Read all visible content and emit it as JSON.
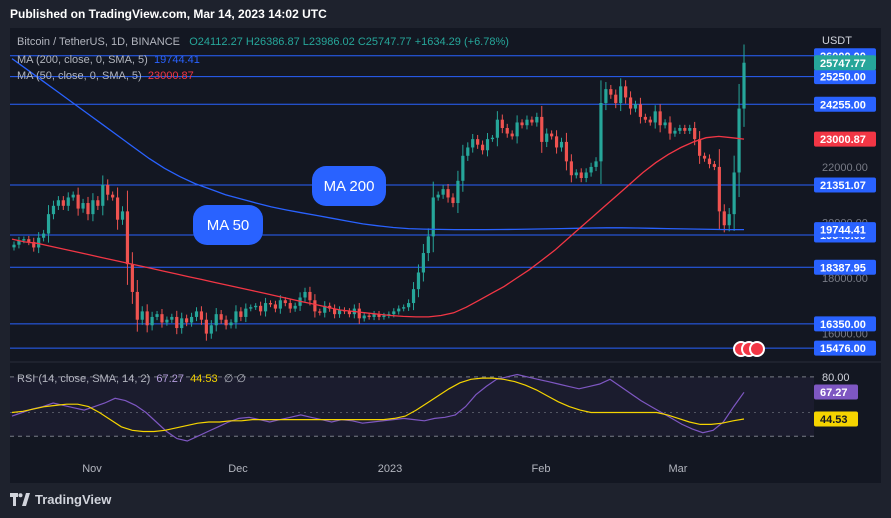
{
  "published": "Published on TradingView.com, Mar 14, 2023 14:02 UTC",
  "brand": "TradingView",
  "legend": {
    "symbol": "Bitcoin / TetherUS, 1D, BINANCE",
    "open": "O24112.27",
    "high": "H26386.87",
    "low": "L23986.02",
    "close": "C25747.77",
    "change": "+1634.29 (+6.78%)",
    "ma200_label": "MA (200, close, 0, SMA, 5)",
    "ma200_value": "19744.41",
    "ma50_label": "MA (50, close, 0, SMA, 5)",
    "ma50_value": "23000.87",
    "rsi_label": "RSI (14, close, SMA, 14, 2)",
    "rsi_value": "67.27",
    "rsi_ma_value": "44.53",
    "rsi_extra": "∅ ∅"
  },
  "currency": "USDT",
  "annotations": {
    "ma200": "MA 200",
    "ma50": "MA 50"
  },
  "colors": {
    "up": "#26a69a",
    "down": "#ef5350",
    "ma200": "#2962ff",
    "ma50": "#f23645",
    "rsi": "#7e57c2",
    "rsi_ma": "#f5d400",
    "level": "#2962ff"
  },
  "chart_data": {
    "type": "candlestick",
    "x_labels": [
      "Nov",
      "Dec",
      "2023",
      "Feb",
      "Mar"
    ],
    "y_ticks": [
      26000,
      22000,
      20000,
      18000,
      16000
    ],
    "y_tick_labels": [
      "26000.00",
      "22000.00",
      "20000.00",
      "18000.00",
      "16000.00"
    ],
    "ylim": [
      15050,
      27000
    ],
    "horizontal_levels": [
      {
        "value": 26000,
        "label": "26000.00"
      },
      {
        "value": 25250,
        "label": "25250.00"
      },
      {
        "value": 24255,
        "label": "24255.00"
      },
      {
        "value": 21351.07,
        "label": "21351.07"
      },
      {
        "value": 19549.09,
        "label": "19549.09"
      },
      {
        "value": 18387.95,
        "label": "18387.95"
      },
      {
        "value": 16350,
        "label": "16350.00"
      },
      {
        "value": 15476,
        "label": "15476.00"
      }
    ],
    "price_tags": [
      {
        "value": 25747.77,
        "label": "25747.77",
        "color": "#26a69a"
      },
      {
        "value": 23000.87,
        "label": "23000.87",
        "color": "#f23645"
      },
      {
        "value": 19744.41,
        "label": "19744.41",
        "color": "#2962ff"
      }
    ],
    "closes": [
      19200,
      19350,
      19400,
      19300,
      19100,
      19450,
      19600,
      20300,
      20600,
      20800,
      20600,
      20900,
      21000,
      20500,
      20700,
      20300,
      20800,
      20600,
      21350,
      21000,
      20900,
      20100,
      20400,
      18500,
      17500,
      16500,
      16800,
      16300,
      16600,
      16700,
      16400,
      16500,
      16600,
      16200,
      16550,
      16400,
      16600,
      16800,
      16500,
      16000,
      16300,
      16700,
      16500,
      16300,
      16400,
      16800,
      16600,
      16900,
      16950,
      17000,
      16800,
      17100,
      17050,
      16900,
      17200,
      17100,
      16900,
      17000,
      17300,
      17500,
      17200,
      16800,
      16750,
      17000,
      16900,
      16700,
      16850,
      16800,
      16700,
      16900,
      16550,
      16650,
      16600,
      16700,
      16600,
      16650,
      16700,
      16800,
      16900,
      16950,
      17100,
      17600,
      18200,
      18900,
      19500,
      20900,
      21000,
      21200,
      20900,
      20700,
      21500,
      22400,
      22700,
      23000,
      22800,
      22600,
      23000,
      23050,
      23700,
      23400,
      23200,
      23100,
      23600,
      23500,
      23700,
      23600,
      23800,
      22900,
      23200,
      23100,
      22700,
      22900,
      22200,
      21700,
      21800,
      21600,
      21800,
      22000,
      22200,
      24300,
      24800,
      24600,
      24300,
      24900,
      24500,
      24100,
      24250,
      23800,
      23700,
      23600,
      24000,
      23500,
      23600,
      23200,
      23300,
      23400,
      23300,
      23400,
      23000,
      22400,
      22300,
      22100,
      22000,
      20400,
      19900,
      20300,
      21800,
      24100,
      25750
    ],
    "ma50": [
      19400,
      19300,
      19250,
      19150,
      19050,
      18950,
      18850,
      18750,
      18650,
      18550,
      18450,
      18350,
      18250,
      18150,
      18050,
      17950,
      17850,
      17750,
      17650,
      17550,
      17450,
      17350,
      17250,
      17150,
      17050,
      16950,
      16850,
      16800,
      16750,
      16700,
      16650,
      16620,
      16600,
      16600,
      16650,
      16750,
      16950,
      17200,
      17450,
      17700,
      18000,
      18300,
      18650,
      19000,
      19400,
      19800,
      20200,
      20600,
      21000,
      21400,
      21800,
      22150,
      22450,
      22700,
      22900,
      23050,
      23100,
      23050,
      23000
    ],
    "ma200": [
      25900,
      25500,
      25100,
      24700,
      24300,
      23900,
      23500,
      23100,
      22700,
      22300,
      21950,
      21650,
      21400,
      21200,
      21000,
      20850,
      20700,
      20560,
      20450,
      20350,
      20250,
      20150,
      20050,
      19950,
      19880,
      19820,
      19780,
      19760,
      19750,
      19745,
      19745,
      19745,
      19748,
      19750,
      19760,
      19770,
      19780,
      19790,
      19800,
      19810,
      19810,
      19800,
      19790,
      19780,
      19770,
      19760,
      19750,
      19745,
      19744
    ],
    "rsi": [
      47,
      50,
      53,
      55,
      58,
      56,
      54,
      52,
      55,
      58,
      62,
      60,
      56,
      50,
      42,
      34,
      28,
      26,
      30,
      34,
      38,
      42,
      45,
      46,
      44,
      42,
      44,
      46,
      48,
      46,
      44,
      42,
      44,
      43,
      41,
      42,
      43,
      44,
      45,
      44,
      43,
      45,
      46,
      48,
      55,
      65,
      72,
      78,
      80,
      82,
      80,
      78,
      76,
      74,
      72,
      70,
      72,
      74,
      78,
      72,
      66,
      60,
      55,
      50,
      45,
      40,
      36,
      33,
      35,
      42,
      55,
      67
    ],
    "rsi_ma": [
      50,
      51,
      53,
      55,
      56,
      57,
      57,
      55,
      50,
      44,
      38,
      35,
      34,
      34,
      35,
      37,
      39,
      41,
      42,
      42,
      43,
      43,
      44,
      44,
      44,
      44,
      44,
      44,
      44,
      44,
      44,
      44,
      44,
      44,
      44,
      45,
      47,
      52,
      58,
      64,
      70,
      75,
      78,
      79,
      79,
      78,
      76,
      73,
      69,
      64,
      59,
      55,
      52,
      50,
      50,
      50,
      50,
      50,
      50,
      50,
      48,
      45,
      42,
      40,
      40,
      41,
      43,
      44.5
    ],
    "rsi_levels": [
      {
        "value": 80,
        "label": "80.00"
      },
      {
        "value": 30,
        "label": ""
      }
    ]
  }
}
